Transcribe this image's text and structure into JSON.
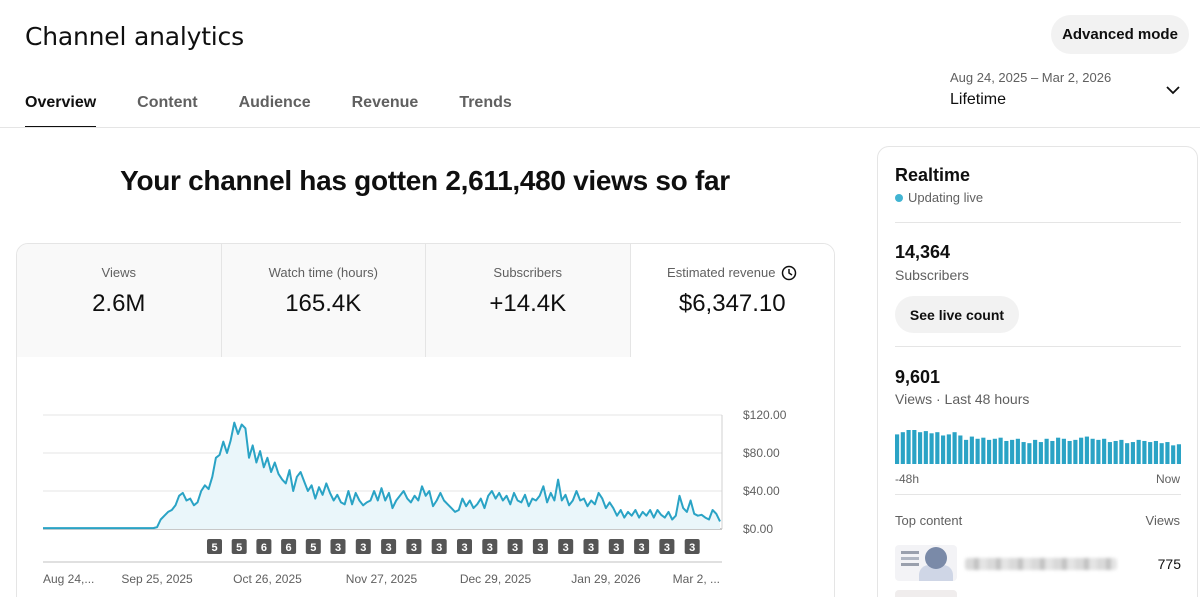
{
  "header": {
    "title": "Channel analytics",
    "advanced_mode_label": "Advanced mode",
    "tabs": [
      {
        "label": "Overview",
        "active": true
      },
      {
        "label": "Content",
        "active": false
      },
      {
        "label": "Audience",
        "active": false
      },
      {
        "label": "Revenue",
        "active": false
      },
      {
        "label": "Trends",
        "active": false
      }
    ],
    "date_range": "Aug 24, 2025 – Mar 2, 2026",
    "date_label": "Lifetime",
    "date_icon": "chevron-down-icon"
  },
  "headline": "Your channel has gotten 2,611,480 views so far",
  "metrics": [
    {
      "label": "Views",
      "value": "2.6M"
    },
    {
      "label": "Watch time (hours)",
      "value": "165.4K"
    },
    {
      "label": "Subscribers",
      "value": "+14.4K"
    },
    {
      "label": "Estimated revenue",
      "value": "$6,347.10",
      "icon": "clock-icon"
    }
  ],
  "chart_data": {
    "type": "line",
    "series_color": "#2aa3c5",
    "fill_color": "#eaf6fa",
    "ylim": [
      0,
      120
    ],
    "y_ticks": [
      "$0.00",
      "$40.00",
      "$80.00",
      "$120.00"
    ],
    "y_tick_values": [
      0,
      40,
      80,
      120
    ],
    "x_tick_labels": [
      "Aug 24,...",
      "Sep 25, 2025",
      "Oct 26, 2025",
      "Nov 27, 2025",
      "Dec 29, 2025",
      "Jan 29, 2026",
      "Mar 2, ..."
    ],
    "x_tick_days": [
      0,
      32,
      63,
      95,
      127,
      158,
      190
    ],
    "x_days_max": 190,
    "values": [
      1,
      1,
      1,
      1,
      1,
      1,
      1,
      1,
      1,
      1,
      1,
      1,
      1,
      1,
      1,
      1,
      1,
      1,
      1,
      1,
      1,
      1,
      1,
      1,
      1,
      1,
      1,
      1,
      1,
      1,
      1,
      2,
      10,
      14,
      18,
      20,
      25,
      35,
      38,
      30,
      32,
      25,
      28,
      40,
      46,
      42,
      55,
      75,
      78,
      92,
      80,
      93,
      112,
      100,
      110,
      106,
      75,
      88,
      70,
      82,
      65,
      75,
      60,
      70,
      58,
      52,
      48,
      62,
      40,
      55,
      60,
      50,
      40,
      46,
      32,
      44,
      36,
      48,
      38,
      30,
      36,
      28,
      26,
      40,
      26,
      38,
      30,
      25,
      28,
      30,
      40,
      30,
      43,
      30,
      38,
      22,
      30,
      35,
      40,
      32,
      28,
      35,
      30,
      45,
      35,
      40,
      24,
      30,
      38,
      30,
      26,
      22,
      18,
      20,
      32,
      24,
      30,
      22,
      26,
      32,
      22,
      35,
      40,
      32,
      38,
      30,
      35,
      26,
      38,
      30,
      28,
      36,
      24,
      32,
      30,
      35,
      45,
      28,
      38,
      30,
      52,
      30,
      36,
      25,
      30,
      40,
      30,
      32,
      24,
      30,
      26,
      38,
      32,
      22,
      28,
      22,
      14,
      20,
      12,
      18,
      14,
      20,
      12,
      18,
      14,
      20,
      12,
      20,
      15,
      12,
      18,
      10,
      14,
      35,
      22,
      18,
      30,
      16,
      14,
      15,
      12,
      10,
      20,
      16,
      8
    ],
    "annotations": [
      "5",
      "5",
      "6",
      "6",
      "5",
      "3",
      "3",
      "3",
      "3",
      "3",
      "3",
      "3",
      "3",
      "3",
      "3",
      "3",
      "3",
      "3",
      "3",
      "3"
    ]
  },
  "realtime": {
    "title": "Realtime",
    "status": "Updating live",
    "subscribers_value": "14,364",
    "subscribers_label": "Subscribers",
    "live_count_button": "See live count",
    "views_value": "9,601",
    "views_label": "Views · Last 48 hours",
    "axis_left": "-48h",
    "axis_right": "Now",
    "bars": [
      27,
      29,
      31,
      31,
      29,
      30,
      28,
      29,
      26,
      27,
      29,
      26,
      22,
      25,
      23,
      24,
      22,
      23,
      24,
      21,
      22,
      23,
      20,
      19,
      22,
      20,
      23,
      21,
      24,
      23,
      21,
      22,
      24,
      25,
      23,
      22,
      23,
      20,
      21,
      22,
      19,
      20,
      22,
      21,
      20,
      21,
      19,
      20,
      17,
      18
    ],
    "top_content_label": "Top content",
    "top_content_views_label": "Views",
    "top_items": [
      {
        "views": "775"
      }
    ]
  }
}
